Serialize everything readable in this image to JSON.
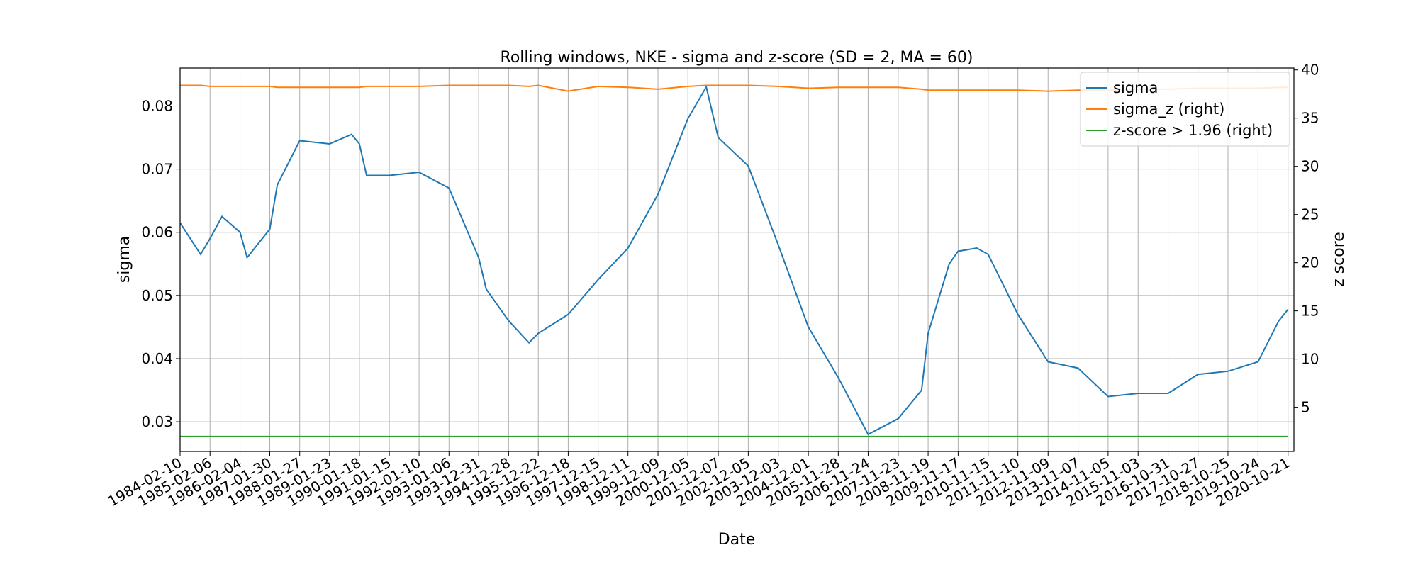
{
  "chart_data": {
    "type": "line",
    "title": "Rolling windows, NKE - sigma and z-score (SD = 2, MA = 60)",
    "xlabel": "Date",
    "ylabel": "sigma",
    "y2label": "z score",
    "legend": "upper right",
    "grid": true,
    "x": [
      "1984-02-10",
      "1984-10-15",
      "1985-02-06",
      "1985-07-01",
      "1986-02-04",
      "1986-05-01",
      "1987-01-30",
      "1987-05-01",
      "1988-01-27",
      "1989-01-23",
      "1989-10-15",
      "1990-01-18",
      "1990-04-15",
      "1991-01-15",
      "1992-01-10",
      "1993-01-06",
      "1993-12-31",
      "1994-04-01",
      "1994-12-28",
      "1995-09-01",
      "1995-12-22",
      "1996-12-18",
      "1997-12-15",
      "1998-12-11",
      "1999-12-09",
      "2000-12-05",
      "2001-07-15",
      "2001-12-07",
      "2002-12-05",
      "2003-12-03",
      "2004-12-01",
      "2005-11-28",
      "2006-11-24",
      "2007-11-23",
      "2008-09-01",
      "2008-11-19",
      "2009-08-01",
      "2009-11-17",
      "2010-07-01",
      "2010-11-15",
      "2011-11-10",
      "2012-11-09",
      "2013-11-07",
      "2014-11-05",
      "2015-11-03",
      "2016-10-31",
      "2017-10-27",
      "2018-10-25",
      "2019-10-24",
      "2020-07-01",
      "2020-10-21"
    ],
    "series": [
      {
        "name": "sigma",
        "color": "#1f77b4",
        "axis": "y",
        "values": [
          0.0615,
          0.0565,
          0.059,
          0.0625,
          0.06,
          0.056,
          0.0605,
          0.0675,
          0.0745,
          0.074,
          0.0755,
          0.074,
          0.069,
          0.069,
          0.0695,
          0.067,
          0.056,
          0.051,
          0.046,
          0.0425,
          0.044,
          0.047,
          0.0525,
          0.0575,
          0.066,
          0.078,
          0.083,
          0.075,
          0.0705,
          0.058,
          0.045,
          0.037,
          0.028,
          0.0305,
          0.035,
          0.044,
          0.055,
          0.057,
          0.0575,
          0.0565,
          0.047,
          0.0395,
          0.0385,
          0.034,
          0.0345,
          0.0345,
          0.0375,
          0.038,
          0.0395,
          0.046,
          0.0478
        ]
      },
      {
        "name": "sigma_z (right)",
        "color": "#ff7f0e",
        "axis": "y2",
        "values": [
          38.4,
          38.4,
          38.3,
          38.3,
          38.3,
          38.3,
          38.3,
          38.2,
          38.2,
          38.2,
          38.2,
          38.2,
          38.3,
          38.3,
          38.3,
          38.4,
          38.4,
          38.4,
          38.4,
          38.3,
          38.4,
          37.8,
          38.3,
          38.2,
          38.0,
          38.3,
          38.4,
          38.4,
          38.4,
          38.3,
          38.1,
          38.2,
          38.2,
          38.2,
          38.0,
          37.9,
          37.9,
          37.9,
          37.9,
          37.9,
          37.9,
          37.8,
          37.9,
          37.9,
          38.0,
          38.0,
          38.1,
          38.1,
          38.1,
          38.2,
          38.2
        ]
      },
      {
        "name": "z-score > 1.96 (right)",
        "color": "#2ca02c",
        "axis": "y2",
        "values": [
          1.96,
          1.96,
          1.96,
          1.96,
          1.96,
          1.96,
          1.96,
          1.96,
          1.96,
          1.96,
          1.96,
          1.96,
          1.96,
          1.96,
          1.96,
          1.96,
          1.96,
          1.96,
          1.96,
          1.96,
          1.96,
          1.96,
          1.96,
          1.96,
          1.96,
          1.96,
          1.96,
          1.96,
          1.96,
          1.96,
          1.96,
          1.96,
          1.96,
          1.96,
          1.96,
          1.96,
          1.96,
          1.96,
          1.96,
          1.96,
          1.96,
          1.96,
          1.96,
          1.96,
          1.96,
          1.96,
          1.96,
          1.96,
          1.96,
          1.96,
          1.96
        ]
      }
    ],
    "xlim": [
      "1984-02-10",
      "2020-12-31"
    ],
    "xticks": [
      "1984-02-10",
      "1985-02-06",
      "1986-02-04",
      "1987-01-30",
      "1988-01-27",
      "1989-01-23",
      "1990-01-18",
      "1991-01-15",
      "1992-01-10",
      "1993-01-06",
      "1993-12-31",
      "1994-12-28",
      "1995-12-22",
      "1996-12-18",
      "1997-12-15",
      "1998-12-11",
      "1999-12-09",
      "2000-12-05",
      "2001-12-07",
      "2002-12-05",
      "2003-12-03",
      "2004-12-01",
      "2005-11-28",
      "2006-11-24",
      "2007-11-23",
      "2008-11-19",
      "2009-11-17",
      "2010-11-15",
      "2011-11-10",
      "2012-11-09",
      "2013-11-07",
      "2014-11-05",
      "2015-11-03",
      "2016-10-31",
      "2017-10-27",
      "2018-10-25",
      "2019-10-24",
      "2020-10-21"
    ],
    "ylim": [
      0.0253,
      0.086
    ],
    "yticks": [
      0.03,
      0.04,
      0.05,
      0.06,
      0.07,
      0.08
    ],
    "y2lim": [
      0.41,
      40.2
    ],
    "y2ticks": [
      5,
      10,
      15,
      20,
      25,
      30,
      35,
      40
    ]
  }
}
